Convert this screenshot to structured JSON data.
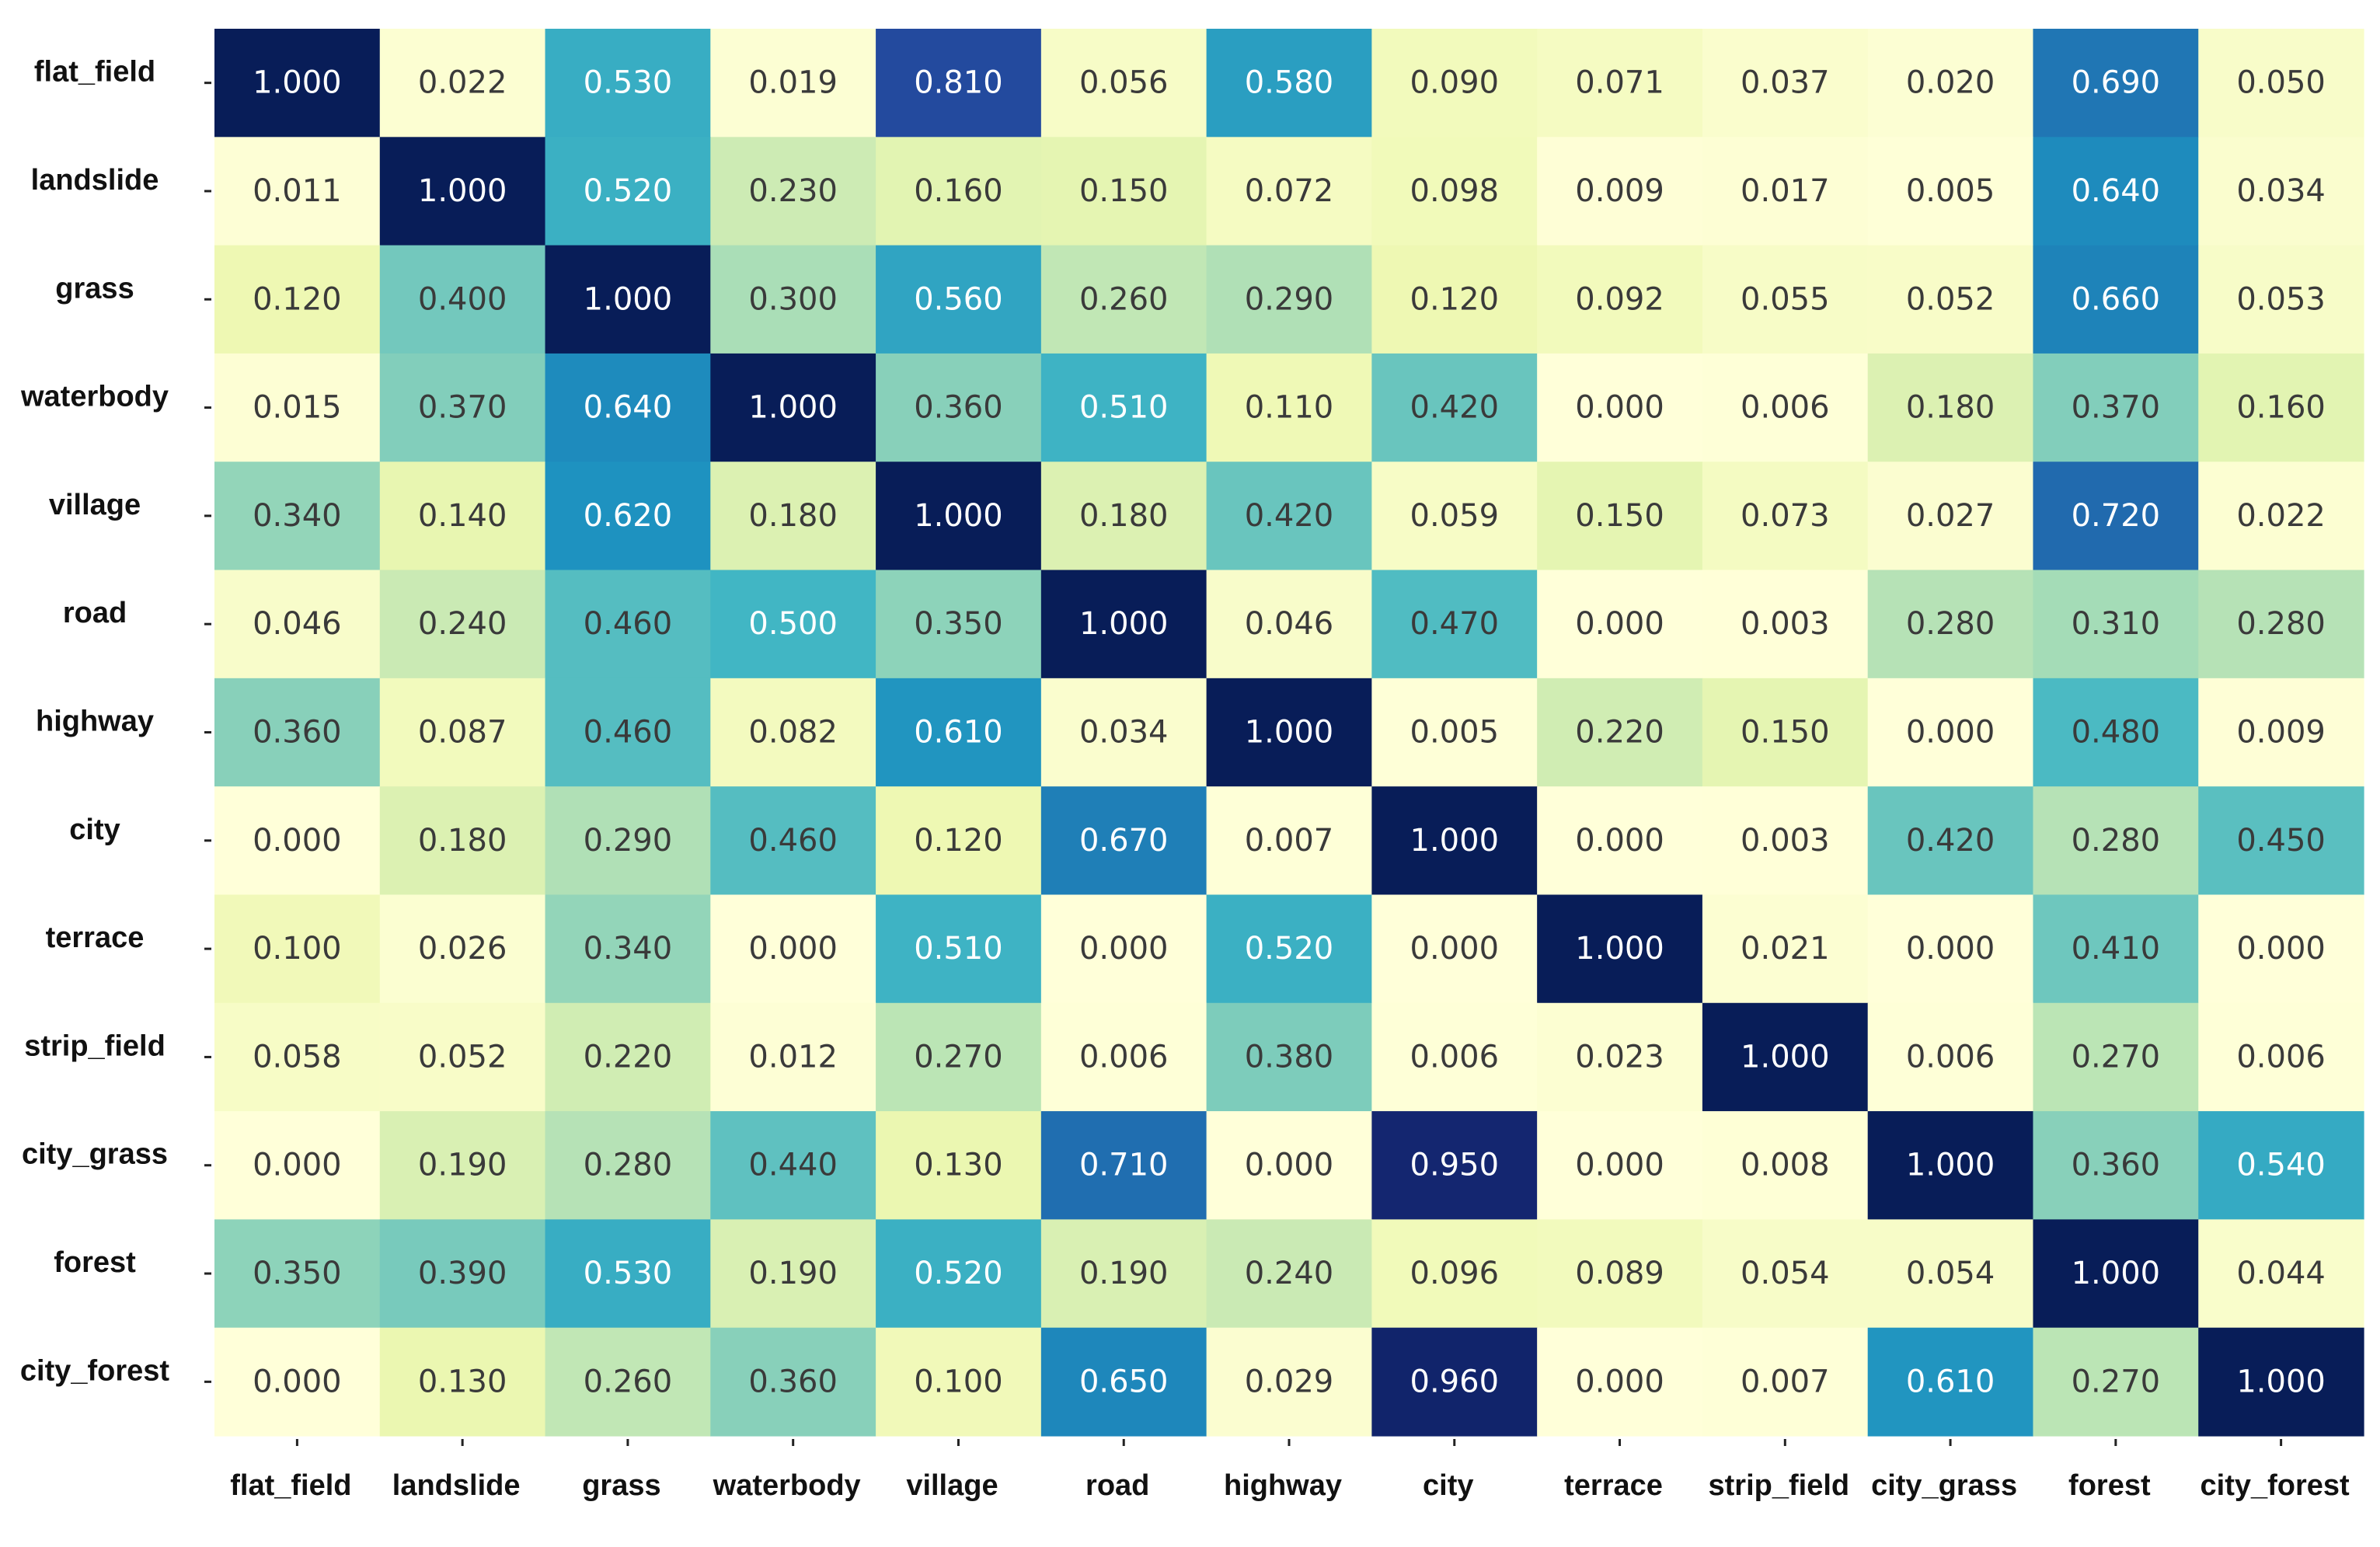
{
  "chart_data": {
    "type": "heatmap",
    "title": "",
    "xlabel": "",
    "ylabel": "",
    "rows": [
      "flat_field",
      "landslide",
      "grass",
      "waterbody",
      "village",
      "road",
      "highway",
      "city",
      "terrace",
      "strip_field",
      "city_grass",
      "forest",
      "city_forest"
    ],
    "columns": [
      "flat_field",
      "landslide",
      "grass",
      "waterbody",
      "village",
      "road",
      "highway",
      "city",
      "terrace",
      "strip_field",
      "city_grass",
      "forest",
      "city_forest"
    ],
    "values": [
      [
        1.0,
        0.022,
        0.53,
        0.019,
        0.81,
        0.056,
        0.58,
        0.09,
        0.071,
        0.037,
        0.02,
        0.69,
        0.05
      ],
      [
        0.011,
        1.0,
        0.52,
        0.23,
        0.16,
        0.15,
        0.072,
        0.098,
        0.009,
        0.017,
        0.005,
        0.64,
        0.034
      ],
      [
        0.12,
        0.4,
        1.0,
        0.3,
        0.56,
        0.26,
        0.29,
        0.12,
        0.092,
        0.055,
        0.052,
        0.66,
        0.053
      ],
      [
        0.015,
        0.37,
        0.64,
        1.0,
        0.36,
        0.51,
        0.11,
        0.42,
        0.0,
        0.006,
        0.18,
        0.37,
        0.16
      ],
      [
        0.34,
        0.14,
        0.62,
        0.18,
        1.0,
        0.18,
        0.42,
        0.059,
        0.15,
        0.073,
        0.027,
        0.72,
        0.022
      ],
      [
        0.046,
        0.24,
        0.46,
        0.5,
        0.35,
        1.0,
        0.046,
        0.47,
        0.0,
        0.003,
        0.28,
        0.31,
        0.28
      ],
      [
        0.36,
        0.087,
        0.46,
        0.082,
        0.61,
        0.034,
        1.0,
        0.005,
        0.22,
        0.15,
        0.0,
        0.48,
        0.009
      ],
      [
        0.0,
        0.18,
        0.29,
        0.46,
        0.12,
        0.67,
        0.007,
        1.0,
        0.0,
        0.003,
        0.42,
        0.28,
        0.45
      ],
      [
        0.1,
        0.026,
        0.34,
        0.0,
        0.51,
        0.0,
        0.52,
        0.0,
        1.0,
        0.021,
        0.0,
        0.41,
        0.0
      ],
      [
        0.058,
        0.052,
        0.22,
        0.012,
        0.27,
        0.006,
        0.38,
        0.006,
        0.023,
        1.0,
        0.006,
        0.27,
        0.006
      ],
      [
        0.0,
        0.19,
        0.28,
        0.44,
        0.13,
        0.71,
        0.0,
        0.95,
        0.0,
        0.008,
        1.0,
        0.36,
        0.54
      ],
      [
        0.35,
        0.39,
        0.53,
        0.19,
        0.52,
        0.19,
        0.24,
        0.096,
        0.089,
        0.054,
        0.054,
        1.0,
        0.044
      ],
      [
        0.0,
        0.13,
        0.26,
        0.36,
        0.1,
        0.65,
        0.029,
        0.96,
        0.0,
        0.007,
        0.61,
        0.27,
        1.0
      ]
    ],
    "value_format": "0.000",
    "colormap": "YlGnBu",
    "vmin": 0,
    "vmax": 1,
    "colorbar": false,
    "grid": false,
    "colors": {
      "stops": [
        "#ffffd9",
        "#edf8b1",
        "#c7e9b4",
        "#7fcdbb",
        "#41b6c4",
        "#1d91c0",
        "#225ea8",
        "#253494",
        "#081d58"
      ],
      "text_dark": "#3a3a3a",
      "text_light": "#ffffff",
      "label": "#111111",
      "tick": "#222222"
    }
  }
}
